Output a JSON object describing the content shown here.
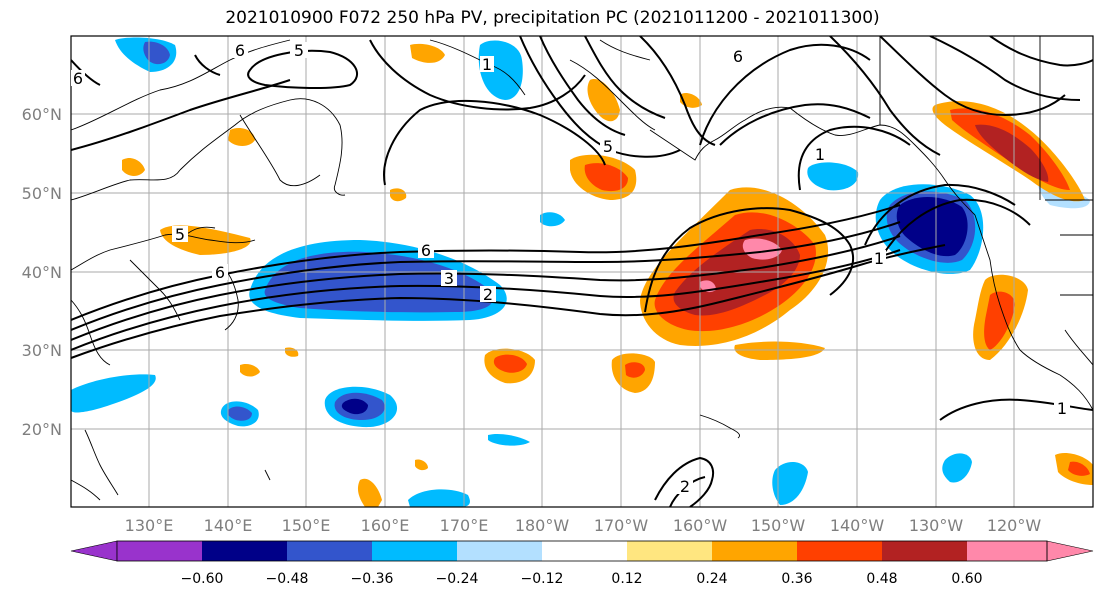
{
  "title": "2021010900 F072 250 hPa PV, precipitation PC (2021011200 - 2021011300)",
  "lat_labels": [
    "20°N",
    "30°N",
    "40°N",
    "50°N",
    "60°N"
  ],
  "lon_labels": [
    "130°E",
    "140°E",
    "150°E",
    "160°E",
    "170°E",
    "180°W",
    "170°W",
    "160°W",
    "150°W",
    "140°W",
    "130°W",
    "120°W"
  ],
  "contour_labels": [
    "5",
    "6",
    "1",
    "6",
    "5",
    "6",
    "3",
    "2",
    "1",
    "6",
    "5",
    "1",
    "2",
    "1",
    "6"
  ],
  "colorbar": {
    "ticks": [
      "−0.60",
      "−0.48",
      "−0.36",
      "−0.24",
      "−0.12",
      "0.12",
      "0.24",
      "0.36",
      "0.48",
      "0.60"
    ],
    "colors": [
      "#9933cc",
      "#000088",
      "#3355cc",
      "#00bbff",
      "#b3e0ff",
      "#ffffff",
      "#ffe680",
      "#ffa500",
      "#ff4000",
      "#b22222",
      "#ff88aa"
    ]
  }
}
